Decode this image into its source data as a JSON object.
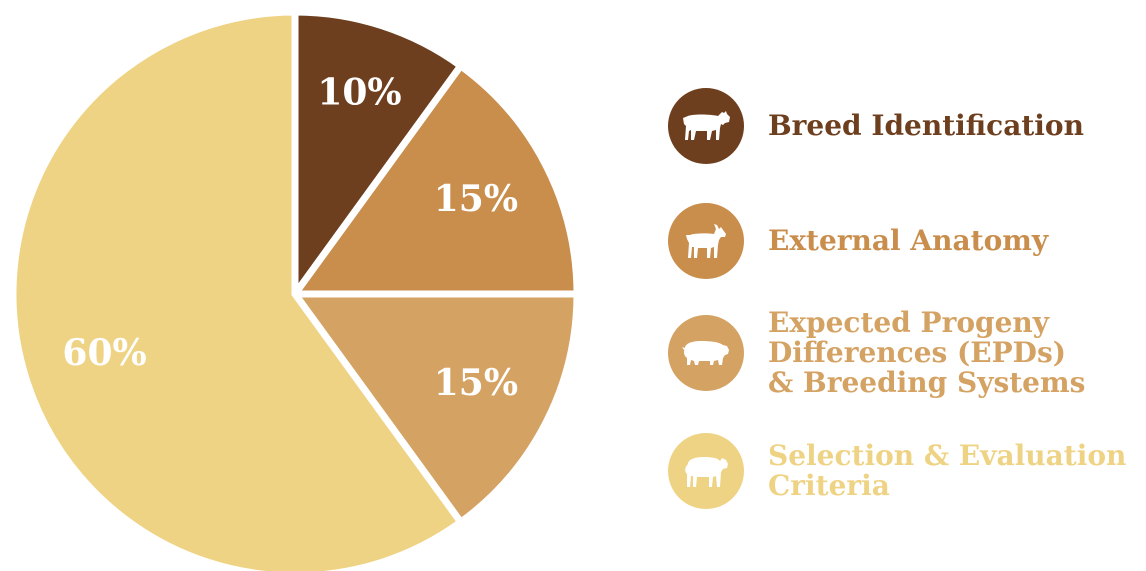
{
  "chart_data": {
    "type": "pie",
    "title": "",
    "slices": [
      {
        "label": "Breed Identification",
        "value": 10,
        "value_label": "10%",
        "color": "#6e3f1e",
        "icon": "cow-icon"
      },
      {
        "label": "External Anatomy",
        "value": 15,
        "value_label": "15%",
        "color": "#c98d4c",
        "icon": "goat-icon"
      },
      {
        "label": "Expected Progeny\nDifferences (EPDs)\n& Breeding Systems",
        "value": 15,
        "value_label": "15%",
        "color": "#d4a262",
        "icon": "pig-icon"
      },
      {
        "label": "Selection & Evaluation\nCriteria",
        "value": 60,
        "value_label": "60%",
        "color": "#efd384",
        "icon": "sheep-icon"
      }
    ],
    "start_angle_deg": 0,
    "direction": "clockwise",
    "legend_position": "right",
    "slice_separator_color": "#ffffff"
  }
}
